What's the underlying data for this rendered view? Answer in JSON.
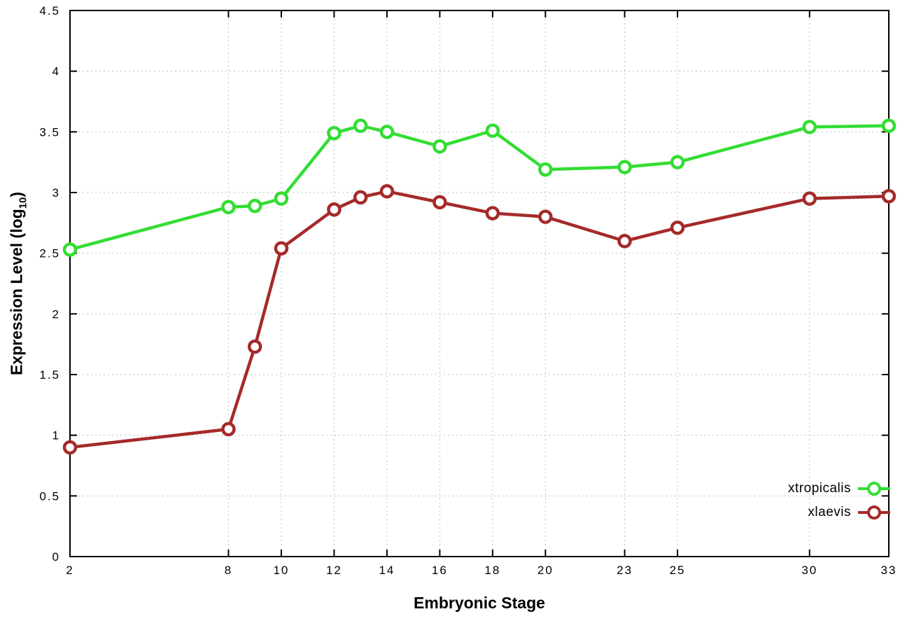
{
  "chart_data": {
    "type": "line",
    "title": "",
    "xlabel": "Embryonic Stage",
    "ylabel": "Expression Level (log10)",
    "ylabel_parts": {
      "prefix": "Expression Level (log",
      "sub": "10",
      "suffix": ")"
    },
    "x": [
      2,
      8,
      9,
      10,
      12,
      13,
      14,
      16,
      18,
      20,
      23,
      25,
      30,
      33
    ],
    "xlim": [
      2,
      33
    ],
    "ylim": [
      0,
      4.5
    ],
    "xticks": [
      2,
      8,
      10,
      12,
      14,
      16,
      18,
      20,
      23,
      25,
      30,
      33
    ],
    "yticks": [
      0,
      0.5,
      1,
      1.5,
      2,
      2.5,
      3,
      3.5,
      4,
      4.5
    ],
    "grid": true,
    "legend_position": "bottom-right",
    "series": [
      {
        "name": "xtropicalis",
        "color": "#33dd33",
        "marker": "open-circle",
        "values": [
          2.53,
          2.88,
          2.89,
          2.95,
          3.49,
          3.55,
          3.5,
          3.38,
          3.51,
          3.19,
          3.21,
          3.25,
          3.54,
          3.55
        ]
      },
      {
        "name": "xlaevis",
        "color": "#a52a2a",
        "marker": "open-circle",
        "values": [
          0.9,
          1.05,
          1.73,
          2.54,
          2.86,
          2.96,
          3.01,
          2.92,
          2.83,
          2.8,
          2.6,
          2.71,
          2.95,
          2.97
        ]
      }
    ]
  }
}
